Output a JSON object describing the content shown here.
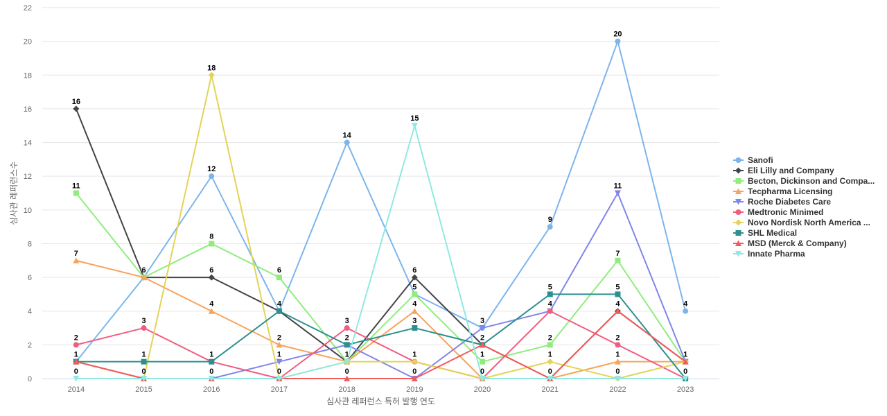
{
  "chart_data": {
    "type": "line",
    "title": "",
    "xlabel": "심사관 레퍼런스 특허 발행 연도",
    "ylabel": "심사관 레퍼런스수",
    "ylim": [
      0,
      22
    ],
    "ytick_step": 2,
    "grid": true,
    "legend_position": "right",
    "categories": [
      "2014",
      "2015",
      "2016",
      "2017",
      "2018",
      "2019",
      "2020",
      "2021",
      "2022",
      "2023"
    ],
    "series": [
      {
        "name": "Sanofi",
        "color": "#7cb5ec",
        "marker": "circle",
        "values": [
          1,
          6,
          12,
          4,
          14,
          5,
          3,
          9,
          20,
          4
        ]
      },
      {
        "name": "Eli Lilly and Company",
        "color": "#434348",
        "marker": "diamond",
        "values": [
          16,
          6,
          6,
          4,
          1,
          6,
          2,
          0,
          4,
          1
        ]
      },
      {
        "name": "Becton, Dickinson and Compa...",
        "color": "#90ed7d",
        "marker": "square",
        "values": [
          11,
          6,
          8,
          6,
          1,
          5,
          1,
          2,
          7,
          1
        ]
      },
      {
        "name": "Tecpharma Licensing",
        "color": "#f7a35c",
        "marker": "triangle",
        "values": [
          7,
          6,
          4,
          2,
          1,
          4,
          0,
          0,
          1,
          1
        ]
      },
      {
        "name": "Roche Diabetes Care",
        "color": "#8085e9",
        "marker": "triangle-down",
        "values": [
          1,
          0,
          0,
          1,
          2,
          0,
          3,
          4,
          11,
          1
        ]
      },
      {
        "name": "Medtronic Minimed",
        "color": "#f15c80",
        "marker": "circle",
        "values": [
          2,
          3,
          1,
          0,
          3,
          1,
          0,
          4,
          2,
          0
        ]
      },
      {
        "name": "Novo Nordisk North America ...",
        "color": "#e4d354",
        "marker": "diamond",
        "values": [
          1,
          0,
          18,
          0,
          1,
          1,
          0,
          1,
          0,
          1
        ]
      },
      {
        "name": "SHL Medical",
        "color": "#2b908f",
        "marker": "square",
        "values": [
          1,
          1,
          1,
          4,
          2,
          3,
          2,
          5,
          5,
          0
        ]
      },
      {
        "name": "MSD (Merck & Company)",
        "color": "#f45b5b",
        "marker": "triangle",
        "values": [
          1,
          0,
          0,
          0,
          0,
          0,
          2,
          0,
          4,
          1
        ]
      },
      {
        "name": "Innate Pharma",
        "color": "#91e8e1",
        "marker": "triangle-down",
        "values": [
          0,
          0,
          0,
          0,
          1,
          15,
          0,
          0,
          0,
          0
        ]
      }
    ],
    "data_labels": [
      {
        "x": "2014",
        "series": "Eli Lilly and Company",
        "text": "16"
      },
      {
        "x": "2014",
        "series": "Becton, Dickinson and Compa...",
        "text": "11"
      },
      {
        "x": "2014",
        "series": "Tecpharma Licensing",
        "text": "7"
      },
      {
        "x": "2014",
        "series": "Medtronic Minimed",
        "text": "2"
      },
      {
        "x": "2014",
        "series": "Sanofi",
        "text": "1"
      },
      {
        "x": "2014",
        "series": "Innate Pharma",
        "text": "0"
      },
      {
        "x": "2015",
        "series": "Sanofi",
        "text": "6"
      },
      {
        "x": "2015",
        "series": "Medtronic Minimed",
        "text": "3"
      },
      {
        "x": "2015",
        "series": "SHL Medical",
        "text": "1"
      },
      {
        "x": "2015",
        "series": "Roche Diabetes Care",
        "text": "0"
      },
      {
        "x": "2016",
        "series": "Novo Nordisk North America ...",
        "text": "18"
      },
      {
        "x": "2016",
        "series": "Sanofi",
        "text": "12"
      },
      {
        "x": "2016",
        "series": "Becton, Dickinson and Compa...",
        "text": "8"
      },
      {
        "x": "2016",
        "series": "Eli Lilly and Company",
        "text": "6"
      },
      {
        "x": "2016",
        "series": "Tecpharma Licensing",
        "text": "4"
      },
      {
        "x": "2016",
        "series": "Medtronic Minimed",
        "text": "1"
      },
      {
        "x": "2016",
        "series": "Roche Diabetes Care",
        "text": "0"
      },
      {
        "x": "2017",
        "series": "Becton, Dickinson and Compa...",
        "text": "6"
      },
      {
        "x": "2017",
        "series": "Sanofi",
        "text": "4"
      },
      {
        "x": "2017",
        "series": "Tecpharma Licensing",
        "text": "2"
      },
      {
        "x": "2017",
        "series": "Roche Diabetes Care",
        "text": "1"
      },
      {
        "x": "2017",
        "series": "Medtronic Minimed",
        "text": "0"
      },
      {
        "x": "2018",
        "series": "Sanofi",
        "text": "14"
      },
      {
        "x": "2018",
        "series": "Medtronic Minimed",
        "text": "3"
      },
      {
        "x": "2018",
        "series": "SHL Medical",
        "text": "2"
      },
      {
        "x": "2018",
        "series": "Eli Lilly and Company",
        "text": "1"
      },
      {
        "x": "2018",
        "series": "MSD (Merck & Company)",
        "text": "0"
      },
      {
        "x": "2019",
        "series": "Innate Pharma",
        "text": "15"
      },
      {
        "x": "2019",
        "series": "Eli Lilly and Company",
        "text": "6"
      },
      {
        "x": "2019",
        "series": "Becton, Dickinson and Compa...",
        "text": "5"
      },
      {
        "x": "2019",
        "series": "Tecpharma Licensing",
        "text": "4"
      },
      {
        "x": "2019",
        "series": "SHL Medical",
        "text": "3"
      },
      {
        "x": "2019",
        "series": "Medtronic Minimed",
        "text": "1"
      },
      {
        "x": "2019",
        "series": "Roche Diabetes Care",
        "text": "0"
      },
      {
        "x": "2020",
        "series": "Sanofi",
        "text": "3"
      },
      {
        "x": "2020",
        "series": "SHL Medical",
        "text": "2"
      },
      {
        "x": "2020",
        "series": "Becton, Dickinson and Compa...",
        "text": "1"
      },
      {
        "x": "2020",
        "series": "Medtronic Minimed",
        "text": "0"
      },
      {
        "x": "2021",
        "series": "Sanofi",
        "text": "9"
      },
      {
        "x": "2021",
        "series": "SHL Medical",
        "text": "5"
      },
      {
        "x": "2021",
        "series": "Roche Diabetes Care",
        "text": "4"
      },
      {
        "x": "2021",
        "series": "Becton, Dickinson and Compa...",
        "text": "2"
      },
      {
        "x": "2021",
        "series": "Novo Nordisk North America ...",
        "text": "1"
      },
      {
        "x": "2021",
        "series": "Eli Lilly and Company",
        "text": "0"
      },
      {
        "x": "2022",
        "series": "Sanofi",
        "text": "20"
      },
      {
        "x": "2022",
        "series": "Roche Diabetes Care",
        "text": "11"
      },
      {
        "x": "2022",
        "series": "Becton, Dickinson and Compa...",
        "text": "7"
      },
      {
        "x": "2022",
        "series": "SHL Medical",
        "text": "5"
      },
      {
        "x": "2022",
        "series": "Eli Lilly and Company",
        "text": "4"
      },
      {
        "x": "2022",
        "series": "Medtronic Minimed",
        "text": "2"
      },
      {
        "x": "2022",
        "series": "Tecpharma Licensing",
        "text": "1"
      },
      {
        "x": "2022",
        "series": "Novo Nordisk North America ...",
        "text": "0"
      },
      {
        "x": "2023",
        "series": "Sanofi",
        "text": "4"
      },
      {
        "x": "2023",
        "series": "Eli Lilly and Company",
        "text": "1"
      },
      {
        "x": "2023",
        "series": "SHL Medical",
        "text": "0"
      }
    ]
  }
}
